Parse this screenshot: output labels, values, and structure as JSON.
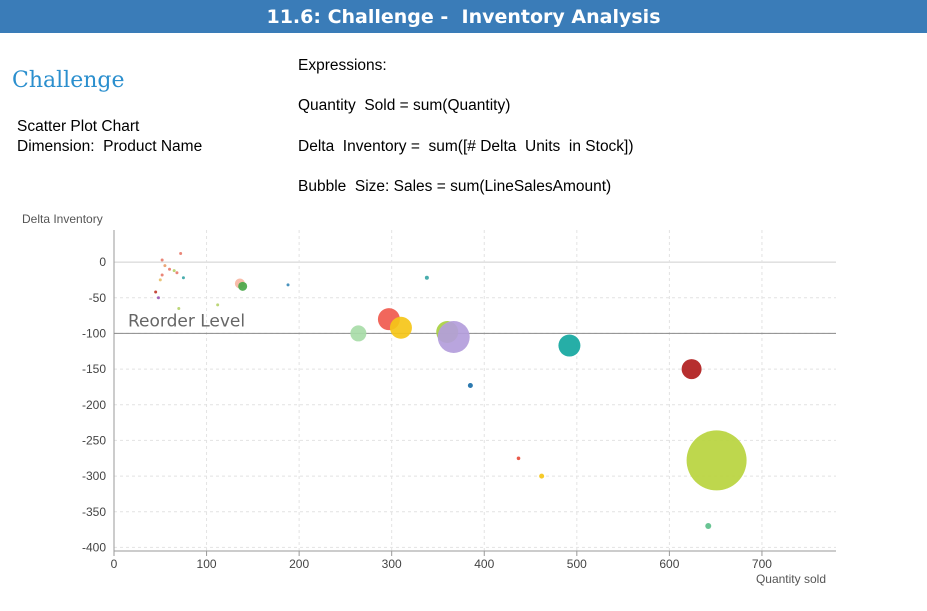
{
  "header": {
    "title": "11.6: Challenge -  Inventory Analysis"
  },
  "section_title": "Challenge",
  "description": {
    "line1": "Scatter Plot Chart",
    "line2": "Dimension:  Product Name"
  },
  "expressions": {
    "heading": "Expressions:",
    "items": [
      "Quantity  Sold = sum(Quantity)",
      "Delta  Inventory =  sum([# Delta  Units  in Stock])",
      "Bubble  Size: Sales = sum(LineSalesAmount)"
    ]
  },
  "chart_data": {
    "type": "scatter",
    "ylabel": "Delta Inventory",
    "xlabel": "Quantity sold",
    "xlim": [
      0,
      780
    ],
    "ylim": [
      -405,
      45
    ],
    "x_ticks": [
      0,
      100,
      200,
      300,
      400,
      500,
      600,
      700
    ],
    "y_ticks": [
      0,
      -50,
      -100,
      -150,
      -200,
      -250,
      -300,
      -350,
      -400
    ],
    "grid": true,
    "reference_line": {
      "y": -100,
      "label": "Reorder Level"
    },
    "points": [
      {
        "x": 52,
        "y": 3,
        "size": 1.5,
        "color": "#e87c6c"
      },
      {
        "x": 55,
        "y": -5,
        "size": 1.5,
        "color": "#e8a06c"
      },
      {
        "x": 60,
        "y": -10,
        "size": 1.5,
        "color": "#e87c6c"
      },
      {
        "x": 65,
        "y": -12,
        "size": 1.5,
        "color": "#b6d36c"
      },
      {
        "x": 68,
        "y": -15,
        "size": 1.5,
        "color": "#e87c6c"
      },
      {
        "x": 72,
        "y": 12,
        "size": 1.5,
        "color": "#e87c6c"
      },
      {
        "x": 75,
        "y": -22,
        "size": 1.5,
        "color": "#3aa6a6"
      },
      {
        "x": 52,
        "y": -18,
        "size": 1.5,
        "color": "#e87c6c"
      },
      {
        "x": 50,
        "y": -25,
        "size": 1.5,
        "color": "#e8c06c"
      },
      {
        "x": 45,
        "y": -42,
        "size": 1.5,
        "color": "#c0392b"
      },
      {
        "x": 48,
        "y": -50,
        "size": 1.5,
        "color": "#9b59b6"
      },
      {
        "x": 70,
        "y": -65,
        "size": 1.5,
        "color": "#b6d36c"
      },
      {
        "x": 112,
        "y": -60,
        "size": 1.5,
        "color": "#b6d36c"
      },
      {
        "x": 136,
        "y": -30,
        "size": 5,
        "color": "#f7b7a3"
      },
      {
        "x": 139,
        "y": -34,
        "size": 4.5,
        "color": "#4aa84a"
      },
      {
        "x": 188,
        "y": -32,
        "size": 1.5,
        "color": "#3a8ab8"
      },
      {
        "x": 338,
        "y": -22,
        "size": 2,
        "color": "#3aa6a6"
      },
      {
        "x": 264,
        "y": -100,
        "size": 8,
        "color": "#a8dca8"
      },
      {
        "x": 297,
        "y": -80,
        "size": 11,
        "color": "#f05a4e"
      },
      {
        "x": 310,
        "y": -92,
        "size": 11,
        "color": "#f5c518"
      },
      {
        "x": 360,
        "y": -98,
        "size": 11,
        "color": "#a8d040"
      },
      {
        "x": 367,
        "y": -105,
        "size": 16,
        "color": "#b39ddb"
      },
      {
        "x": 385,
        "y": -173,
        "size": 2.5,
        "color": "#1a6ea8"
      },
      {
        "x": 492,
        "y": -117,
        "size": 11,
        "color": "#14a7a0"
      },
      {
        "x": 437,
        "y": -275,
        "size": 1.8,
        "color": "#e74c3c"
      },
      {
        "x": 462,
        "y": -300,
        "size": 2.5,
        "color": "#f5c518"
      },
      {
        "x": 624,
        "y": -150,
        "size": 10,
        "color": "#b01c1c"
      },
      {
        "x": 651,
        "y": -278,
        "size": 30,
        "color": "#b8d43e"
      },
      {
        "x": 642,
        "y": -370,
        "size": 3,
        "color": "#5cbf8a"
      }
    ]
  }
}
